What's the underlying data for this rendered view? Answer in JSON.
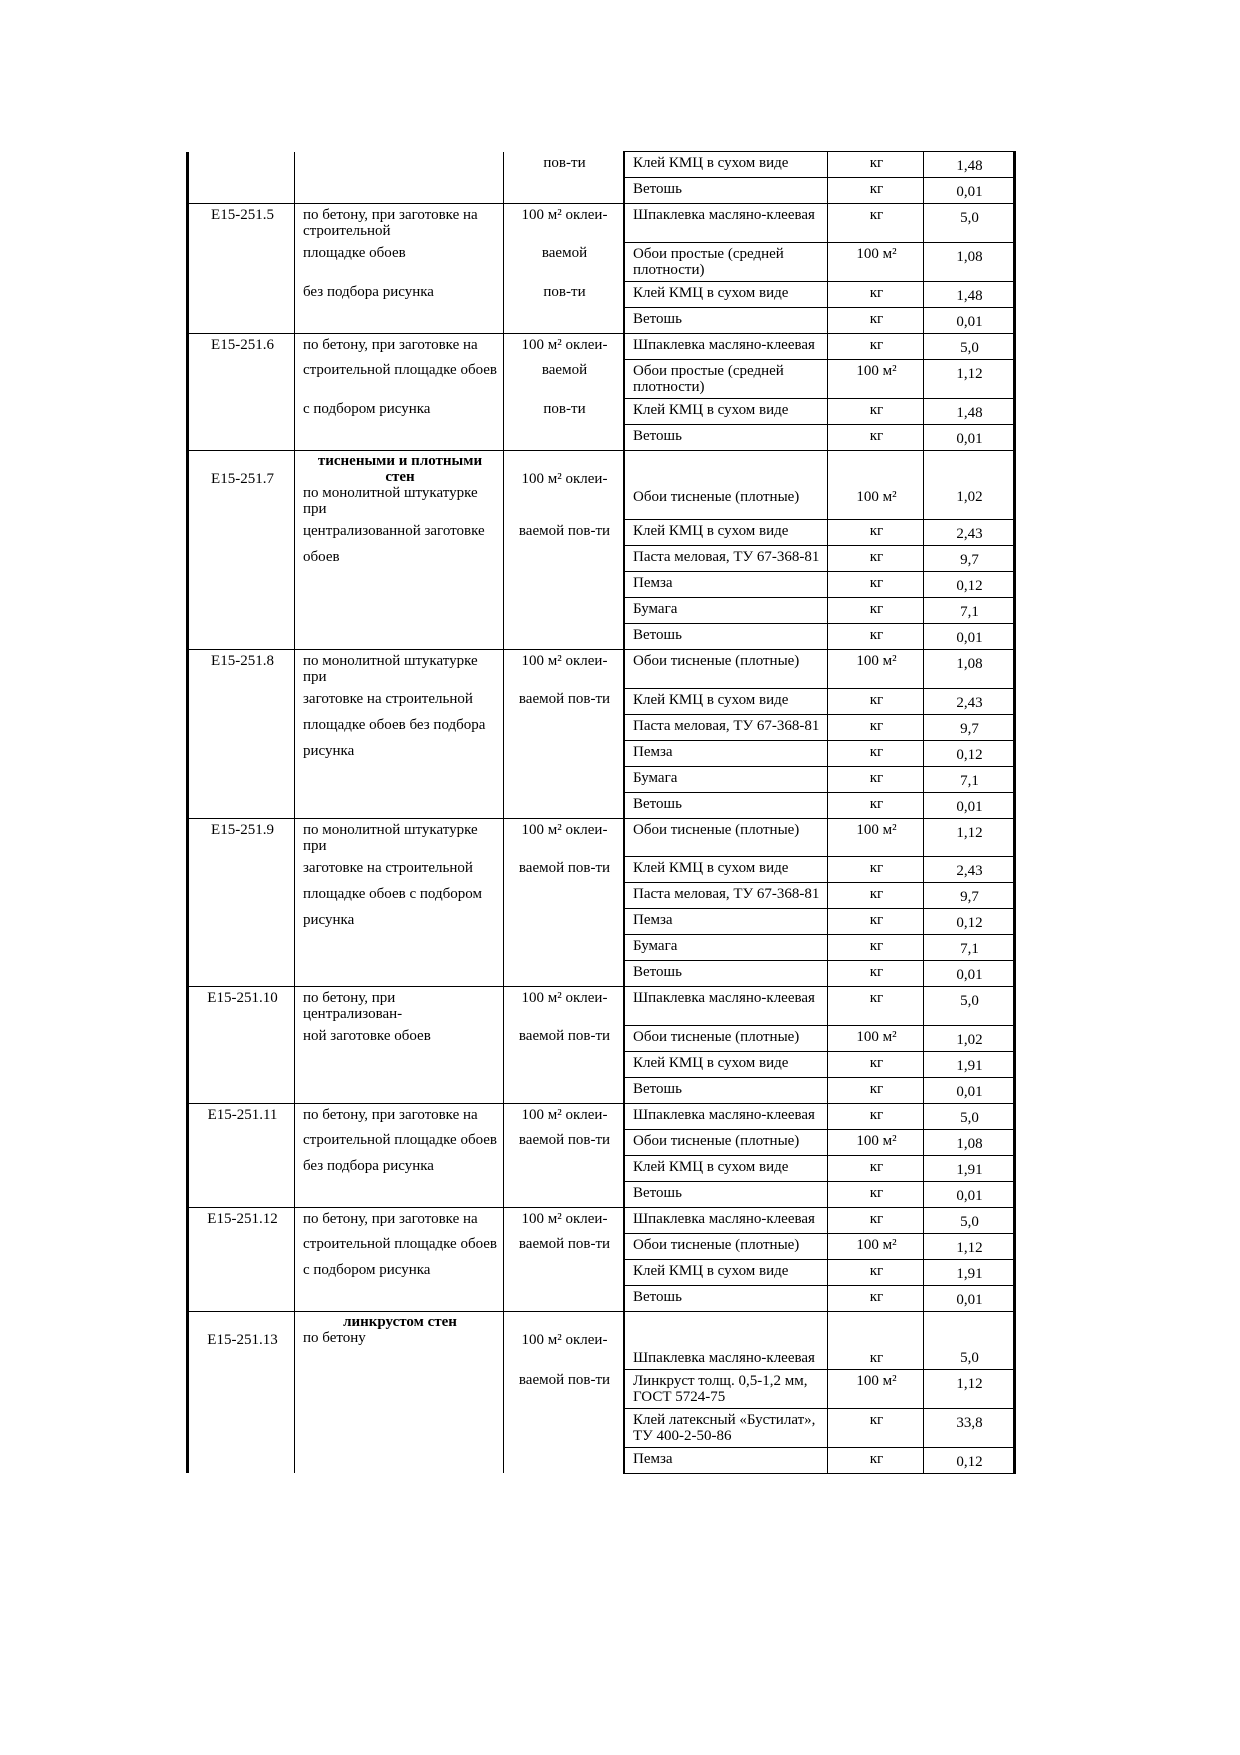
{
  "table": {
    "groups": [
      {
        "code": "",
        "rows": [
          {
            "desc": "",
            "unit": "пов-ти",
            "material": "Клей КМЦ в сухом виде",
            "measure": "кг",
            "qty": "1,48"
          },
          {
            "desc": "",
            "unit": "",
            "material": "Ветошь",
            "measure": "кг",
            "qty": "0,01"
          }
        ]
      },
      {
        "code": "Е15-251.5",
        "rows": [
          {
            "desc": "по бетону, при заготовке на строительной",
            "unit": "100 м² оклеи-",
            "material": "Шпаклевка масляно-клеевая",
            "measure": "кг",
            "qty": "5,0"
          },
          {
            "desc": "площадке обоев",
            "unit": "ваемой",
            "material": "Обои простые (средней плотности)",
            "measure": "100 м²",
            "qty": "1,08"
          },
          {
            "desc": "без подбора рисунка",
            "unit": "пов-ти",
            "material": "Клей КМЦ в сухом виде",
            "measure": "кг",
            "qty": "1,48"
          },
          {
            "desc": "",
            "unit": "",
            "material": "Ветошь",
            "measure": "кг",
            "qty": "0,01"
          }
        ]
      },
      {
        "code": "Е15-251.6",
        "rows": [
          {
            "desc": "по бетону, при заготовке на",
            "unit": "100 м² оклеи-",
            "material": "Шпаклевка масляно-клеевая",
            "measure": "кг",
            "qty": "5,0"
          },
          {
            "desc": "строительной площадке обоев",
            "unit": "ваемой",
            "material": "Обои простые (средней плотности)",
            "measure": "100 м²",
            "qty": "1,12"
          },
          {
            "desc": "с подбором рисунка",
            "unit": "пов-ти",
            "material": "Клей КМЦ в сухом виде",
            "measure": "кг",
            "qty": "1,48"
          },
          {
            "desc": "",
            "unit": "",
            "material": "Ветошь",
            "measure": "кг",
            "qty": "0,01"
          }
        ]
      },
      {
        "code": "Е15-251.7",
        "heading": "тиснеными и плотными стен",
        "rows": [
          {
            "desc": "по монолитной штукатурке при",
            "unit": "100 м² оклеи-",
            "material": "Обои тисненые (плотные)",
            "measure": "100 м²",
            "qty": "1,02"
          },
          {
            "desc": "централизованной заготовке",
            "unit": "ваемой пов-ти",
            "material": "Клей КМЦ в сухом виде",
            "measure": "кг",
            "qty": "2,43"
          },
          {
            "desc": "обоев",
            "unit": "",
            "material": "Паста меловая, ТУ 67-368-81",
            "measure": "кг",
            "qty": "9,7"
          },
          {
            "desc": "",
            "unit": "",
            "material": "Пемза",
            "measure": "кг",
            "qty": "0,12"
          },
          {
            "desc": "",
            "unit": "",
            "material": "Бумага",
            "measure": "кг",
            "qty": "7,1"
          },
          {
            "desc": "",
            "unit": "",
            "material": "Ветошь",
            "measure": "кг",
            "qty": "0,01"
          }
        ]
      },
      {
        "code": "Е15-251.8",
        "rows": [
          {
            "desc": "по монолитной штукатурке при",
            "unit": "100 м² оклеи-",
            "material": "Обои тисненые (плотные)",
            "measure": "100 м²",
            "qty": "1,08"
          },
          {
            "desc": "заготовке на строительной",
            "unit": "ваемой пов-ти",
            "material": "Клей КМЦ в сухом виде",
            "measure": "кг",
            "qty": "2,43"
          },
          {
            "desc": "площадке обоев без подбора",
            "unit": "",
            "material": "Паста меловая, ТУ 67-368-81",
            "measure": "кг",
            "qty": "9,7"
          },
          {
            "desc": "рисунка",
            "unit": "",
            "material": "Пемза",
            "measure": "кг",
            "qty": "0,12"
          },
          {
            "desc": "",
            "unit": "",
            "material": "Бумага",
            "measure": "кг",
            "qty": "7,1"
          },
          {
            "desc": "",
            "unit": "",
            "material": "Ветошь",
            "measure": "кг",
            "qty": "0,01"
          }
        ]
      },
      {
        "code": "Е15-251.9",
        "rows": [
          {
            "desc": "по монолитной штукатурке при",
            "unit": "100 м² оклеи-",
            "material": "Обои тисненые (плотные)",
            "measure": "100 м²",
            "qty": "1,12"
          },
          {
            "desc": "заготовке на строительной",
            "unit": "ваемой пов-ти",
            "material": "Клей КМЦ в сухом виде",
            "measure": "кг",
            "qty": "2,43"
          },
          {
            "desc": "площадке обоев с подбором",
            "unit": "",
            "material": "Паста меловая, ТУ 67-368-81",
            "measure": "кг",
            "qty": "9,7"
          },
          {
            "desc": "рисунка",
            "unit": "",
            "material": "Пемза",
            "measure": "кг",
            "qty": "0,12"
          },
          {
            "desc": "",
            "unit": "",
            "material": "Бумага",
            "measure": "кг",
            "qty": "7,1"
          },
          {
            "desc": "",
            "unit": "",
            "material": "Ветошь",
            "measure": "кг",
            "qty": "0,01"
          }
        ]
      },
      {
        "code": "Е15-251.10",
        "rows": [
          {
            "desc": "по бетону, при централизован-",
            "unit": "100 м² оклеи-",
            "material": "Шпаклевка масляно-клеевая",
            "measure": "кг",
            "qty": "5,0"
          },
          {
            "desc": "ной заготовке обоев",
            "unit": "ваемой пов-ти",
            "material": "Обои тисненые (плотные)",
            "measure": "100 м²",
            "qty": "1,02"
          },
          {
            "desc": "",
            "unit": "",
            "material": "Клей КМЦ в сухом виде",
            "measure": "кг",
            "qty": "1,91"
          },
          {
            "desc": "",
            "unit": "",
            "material": "Ветошь",
            "measure": "кг",
            "qty": "0,01"
          }
        ]
      },
      {
        "code": "Е15-251.11",
        "rows": [
          {
            "desc": "по бетону, при заготовке на",
            "unit": "100 м² оклеи-",
            "material": "Шпаклевка масляно-клеевая",
            "measure": "кг",
            "qty": "5,0"
          },
          {
            "desc": "строительной площадке обоев",
            "unit": "ваемой пов-ти",
            "material": "Обои тисненые (плотные)",
            "measure": "100 м²",
            "qty": "1,08"
          },
          {
            "desc": "без подбора рисунка",
            "unit": "",
            "material": "Клей КМЦ в сухом виде",
            "measure": "кг",
            "qty": "1,91"
          },
          {
            "desc": "",
            "unit": "",
            "material": "Ветошь",
            "measure": "кг",
            "qty": "0,01"
          }
        ]
      },
      {
        "code": "Е15-251.12",
        "rows": [
          {
            "desc": "по бетону, при заготовке на",
            "unit": "100 м² оклеи-",
            "material": "Шпаклевка масляно-клеевая",
            "measure": "кг",
            "qty": "5,0"
          },
          {
            "desc": "строительной площадке обоев",
            "unit": "ваемой пов-ти",
            "material": "Обои тисненые (плотные)",
            "measure": "100 м²",
            "qty": "1,12"
          },
          {
            "desc": "с подбором рисунка",
            "unit": "",
            "material": "Клей КМЦ в сухом виде",
            "measure": "кг",
            "qty": "1,91"
          },
          {
            "desc": "",
            "unit": "",
            "material": "Ветошь",
            "measure": "кг",
            "qty": "0,01"
          }
        ]
      },
      {
        "code": "Е15-251.13",
        "heading": "линкрустом стен",
        "rows": [
          {
            "desc": "по бетону",
            "unit": "100 м² оклеи-",
            "material": "Шпаклевка масляно-клеевая",
            "measure": "кг",
            "qty": "5,0"
          },
          {
            "desc": "",
            "unit": "ваемой пов-ти",
            "material": "Линкруст толщ. 0,5-1,2 мм, ГОСТ 5724-75",
            "measure": "100 м²",
            "qty": "1,12"
          },
          {
            "desc": "",
            "unit": "",
            "material": "Клей латексный «Бустилат», ТУ 400-2-50-86",
            "measure": "кг",
            "qty": "33,8"
          },
          {
            "desc": "",
            "unit": "",
            "material": "Пемза",
            "measure": "кг",
            "qty": "0,12"
          }
        ]
      }
    ]
  }
}
